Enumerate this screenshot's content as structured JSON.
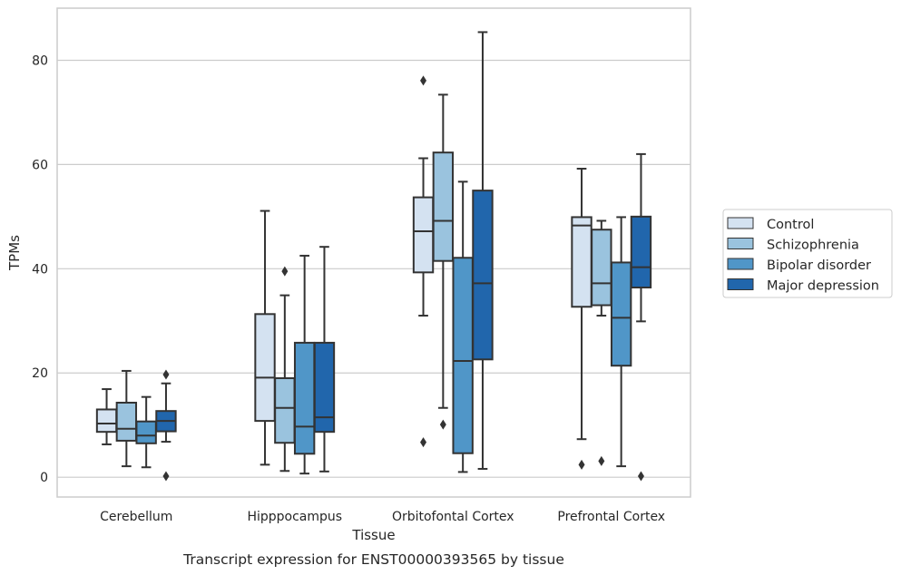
{
  "chart_data": {
    "type": "box",
    "title": "",
    "caption": "Transcript expression for ENST00000393565 by tissue",
    "xlabel": "Tissue",
    "ylabel": "TPMs",
    "ylim": [
      -3.8,
      90
    ],
    "yticks": [
      0,
      20,
      40,
      60,
      80
    ],
    "grid": "horizontal",
    "legend_position": "right",
    "categories": [
      "Cerebellum",
      "Hipppocampus",
      "Orbitofontal Cortex",
      "Prefrontal Cortex"
    ],
    "series": [
      {
        "name": "Control",
        "color": "#d4e2f1",
        "boxes": [
          {
            "whislo": 6.3,
            "q1": 8.7,
            "med": 10.3,
            "q3": 13.0,
            "whishi": 16.9,
            "fliers": []
          },
          {
            "whislo": 2.4,
            "q1": 10.8,
            "med": 19.1,
            "q3": 31.3,
            "whishi": 51.1,
            "fliers": []
          },
          {
            "whislo": 31.0,
            "q1": 39.3,
            "med": 47.2,
            "q3": 53.7,
            "whishi": 61.2,
            "fliers": [
              76.1,
              6.7
            ]
          },
          {
            "whislo": 7.3,
            "q1": 32.7,
            "med": 48.3,
            "q3": 49.9,
            "whishi": 59.2,
            "fliers": [
              2.4
            ]
          }
        ]
      },
      {
        "name": "Schizophrenia",
        "color": "#9ac3de",
        "boxes": [
          {
            "whislo": 2.1,
            "q1": 7.0,
            "med": 9.3,
            "q3": 14.3,
            "whishi": 20.4,
            "fliers": []
          },
          {
            "whislo": 1.2,
            "q1": 6.6,
            "med": 13.3,
            "q3": 19.0,
            "whishi": 34.9,
            "fliers": [
              39.5
            ]
          },
          {
            "whislo": 13.3,
            "q1": 41.5,
            "med": 49.2,
            "q3": 62.3,
            "whishi": 73.4,
            "fliers": [
              10.1
            ]
          },
          {
            "whislo": 31.0,
            "q1": 33.0,
            "med": 37.2,
            "q3": 47.5,
            "whishi": 49.2,
            "fliers": [
              3.1
            ]
          }
        ]
      },
      {
        "name": "Bipolar disorder",
        "color": "#5096c8",
        "boxes": [
          {
            "whislo": 1.9,
            "q1": 6.5,
            "med": 8.0,
            "q3": 10.7,
            "whishi": 15.4,
            "fliers": []
          },
          {
            "whislo": 0.7,
            "q1": 4.5,
            "med": 9.7,
            "q3": 25.8,
            "whishi": 42.5,
            "fliers": []
          },
          {
            "whislo": 1.0,
            "q1": 4.6,
            "med": 22.3,
            "q3": 42.1,
            "whishi": 56.7,
            "fliers": []
          },
          {
            "whislo": 2.1,
            "q1": 21.4,
            "med": 30.6,
            "q3": 41.2,
            "whishi": 49.9,
            "fliers": []
          }
        ]
      },
      {
        "name": "Major depression",
        "color": "#2166ac",
        "boxes": [
          {
            "whislo": 6.8,
            "q1": 8.8,
            "med": 10.8,
            "q3": 12.7,
            "whishi": 18.0,
            "fliers": [
              19.7,
              0.2
            ]
          },
          {
            "whislo": 1.1,
            "q1": 8.7,
            "med": 11.5,
            "q3": 25.8,
            "whishi": 44.2,
            "fliers": []
          },
          {
            "whislo": 1.6,
            "q1": 22.6,
            "med": 37.2,
            "q3": 55.0,
            "whishi": 85.4,
            "fliers": []
          },
          {
            "whislo": 29.9,
            "q1": 36.4,
            "med": 40.3,
            "q3": 50.0,
            "whishi": 62.0,
            "fliers": [
              0.2
            ]
          }
        ]
      }
    ]
  },
  "colors": {
    "edge": "#333333",
    "grid": "#cccccc",
    "frame": "#cccccc"
  }
}
